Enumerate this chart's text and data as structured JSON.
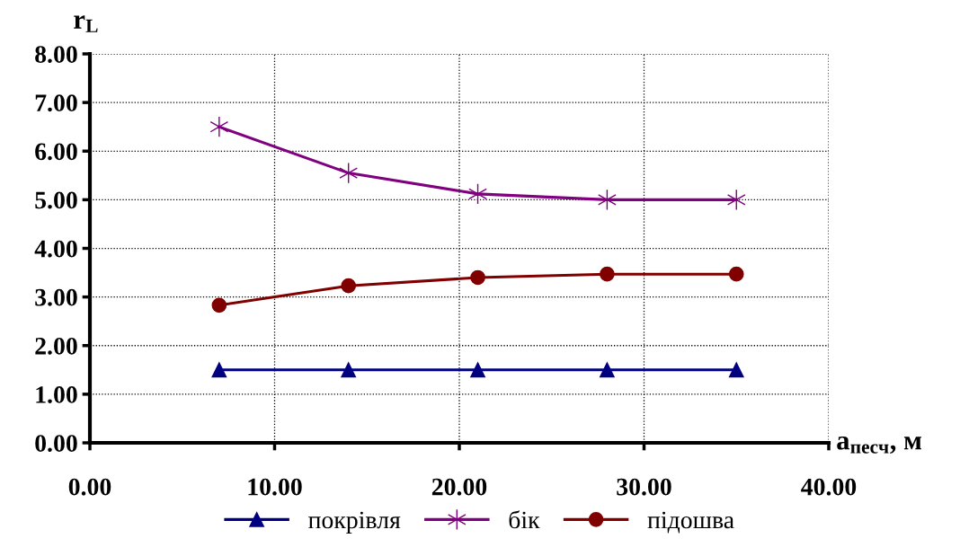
{
  "chart_data": {
    "type": "line",
    "xlabel": "a$_{песч}$, м",
    "ylabel": "r$_{L}$",
    "x": [
      7,
      14,
      21,
      28,
      35
    ],
    "series": [
      {
        "name": "покрівля",
        "color": "#000080",
        "marker": "triangle",
        "values": [
          1.5,
          1.5,
          1.5,
          1.5,
          1.5
        ]
      },
      {
        "name": "бік",
        "color": "#800080",
        "marker": "cross",
        "values": [
          6.5,
          5.55,
          5.12,
          5.0,
          5.0
        ]
      },
      {
        "name": "підошва",
        "color": "#800000",
        "marker": "circle",
        "values": [
          2.83,
          3.23,
          3.4,
          3.47,
          3.47
        ]
      }
    ],
    "xlim": [
      0,
      40
    ],
    "xticks": [
      {
        "value": 0,
        "label": "0.00"
      },
      {
        "value": 10,
        "label": "10.00"
      },
      {
        "value": 20,
        "label": "20.00"
      },
      {
        "value": 30,
        "label": "30.00"
      },
      {
        "value": 40,
        "label": "40.00"
      }
    ],
    "ylim": [
      0,
      8
    ],
    "yticks": [
      {
        "value": 0,
        "label": "0.00"
      },
      {
        "value": 1,
        "label": "1.00"
      },
      {
        "value": 2,
        "label": "2.00"
      },
      {
        "value": 3,
        "label": "3.00"
      },
      {
        "value": 4,
        "label": "4.00"
      },
      {
        "value": 5,
        "label": "5.00"
      },
      {
        "value": 6,
        "label": "6.00"
      },
      {
        "value": 7,
        "label": "7.00"
      },
      {
        "value": 8,
        "label": "8.00"
      }
    ],
    "grid": true,
    "legend": "bottom",
    "line_style": "solid"
  }
}
